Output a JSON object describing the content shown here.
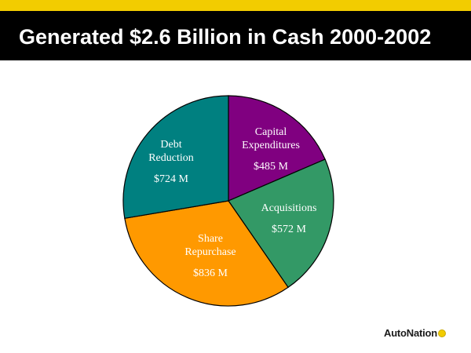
{
  "header": {
    "title": "Generated $2.6 Billion in Cash 2000-2002"
  },
  "brand": {
    "logo_text": "AutoNation",
    "accent": "#f2cc00"
  },
  "chart_data": {
    "type": "pie",
    "title": "",
    "slices": [
      {
        "label": "Capital Expenditures",
        "lines": [
          "Capital",
          "Expenditures"
        ],
        "value_label": "$485 M",
        "value": 485,
        "color": "#800080"
      },
      {
        "label": "Acquisitions",
        "lines": [
          "Acquisitions"
        ],
        "value_label": "$572 M",
        "value": 572,
        "color": "#339966"
      },
      {
        "label": "Share Repurchase",
        "lines": [
          "Share",
          "Repurchase"
        ],
        "value_label": "$836 M",
        "value": 836,
        "color": "#ff9900"
      },
      {
        "label": "Debt Reduction",
        "lines": [
          "Debt",
          "Reduction"
        ],
        "value_label": "$724 M",
        "value": 724,
        "color": "#008080"
      }
    ]
  }
}
